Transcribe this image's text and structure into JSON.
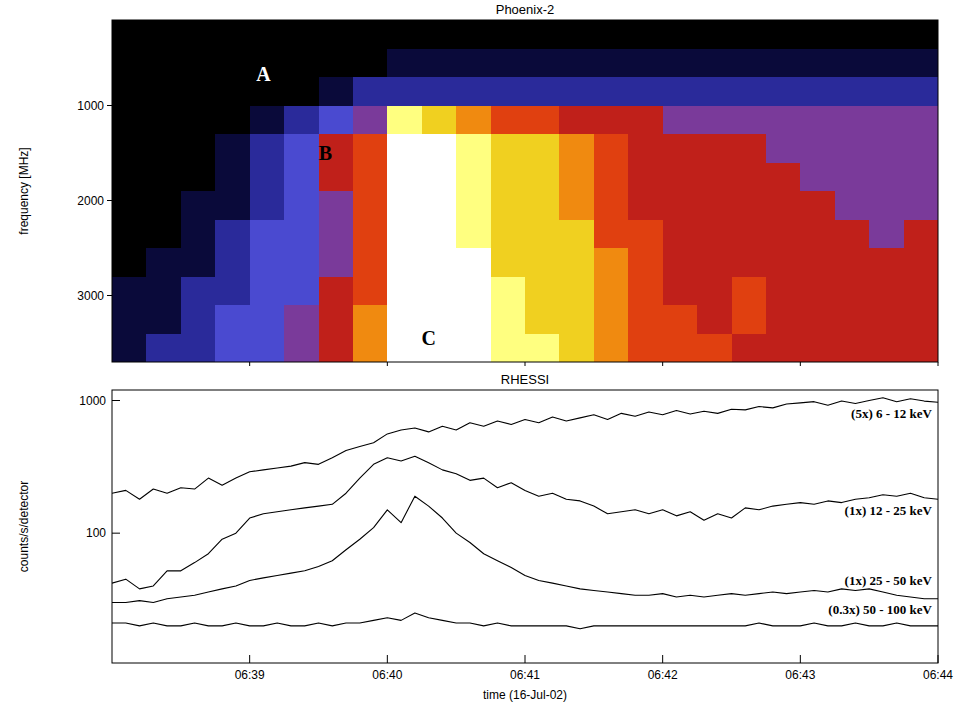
{
  "chart_data": [
    {
      "type": "heatmap",
      "title": "Phoenix-2",
      "y_label": "frequency [MHz]",
      "xlim": [
        38,
        44
      ],
      "ylim": [
        100,
        3700
      ],
      "xticks": [
        39,
        40,
        41,
        42,
        43,
        44
      ],
      "yticks": [
        1000,
        2000,
        3000
      ],
      "tick_labels": "y",
      "x_bins": [
        38,
        38.25,
        38.5,
        38.75,
        39,
        39.25,
        39.5,
        39.75,
        40,
        40.25,
        40.5,
        40.75,
        41,
        41.25,
        41.5,
        41.75,
        42,
        42.25,
        42.5,
        42.75,
        43,
        43.25,
        43.5,
        43.75,
        44
      ],
      "y_bins": [
        100,
        400,
        700,
        1000,
        1300,
        1600,
        1900,
        2200,
        2500,
        2800,
        3100,
        3400,
        3700
      ],
      "zlim": [
        0,
        10
      ],
      "cells": [
        [
          0,
          0,
          0,
          0,
          0,
          0,
          0,
          0,
          0,
          0,
          0,
          0,
          0,
          0,
          0,
          0,
          0,
          0,
          0,
          0,
          0,
          0,
          0,
          0
        ],
        [
          0,
          0,
          0,
          0,
          0,
          0,
          0,
          0,
          1,
          1,
          1,
          1,
          1,
          1,
          1,
          1,
          1,
          1,
          1,
          1,
          1,
          1,
          1,
          1
        ],
        [
          0,
          0,
          0,
          0,
          0,
          0,
          1,
          2,
          2,
          2,
          2,
          2,
          2,
          2,
          2,
          2,
          2,
          2,
          2,
          2,
          2,
          2,
          2,
          2
        ],
        [
          0,
          0,
          0,
          0,
          1,
          2,
          3,
          4,
          9,
          8,
          7,
          6,
          6,
          5,
          5,
          5,
          4,
          4,
          4,
          4,
          4,
          4,
          4,
          4
        ],
        [
          0,
          0,
          0,
          1,
          2,
          3,
          5,
          6,
          10,
          10,
          9,
          8,
          8,
          7,
          6,
          5,
          5,
          5,
          5,
          4,
          4,
          4,
          4,
          4
        ],
        [
          0,
          0,
          0,
          1,
          2,
          3,
          5,
          6,
          10,
          10,
          9,
          8,
          8,
          7,
          6,
          5,
          5,
          5,
          5,
          5,
          4,
          4,
          4,
          4
        ],
        [
          0,
          0,
          1,
          1,
          2,
          3,
          4,
          6,
          10,
          10,
          9,
          8,
          8,
          7,
          6,
          5,
          5,
          5,
          5,
          5,
          5,
          4,
          4,
          4
        ],
        [
          0,
          0,
          1,
          2,
          3,
          3,
          4,
          6,
          10,
          10,
          9,
          8,
          8,
          8,
          6,
          6,
          5,
          5,
          5,
          5,
          5,
          5,
          4,
          5
        ],
        [
          0,
          1,
          1,
          2,
          3,
          3,
          4,
          6,
          10,
          10,
          10,
          8,
          8,
          8,
          7,
          6,
          5,
          5,
          5,
          5,
          5,
          5,
          5,
          5
        ],
        [
          1,
          1,
          2,
          2,
          3,
          3,
          5,
          6,
          10,
          10,
          10,
          9,
          8,
          8,
          7,
          6,
          5,
          5,
          6,
          5,
          5,
          5,
          5,
          5
        ],
        [
          1,
          1,
          2,
          3,
          3,
          4,
          5,
          7,
          10,
          10,
          10,
          9,
          8,
          8,
          7,
          6,
          6,
          5,
          6,
          5,
          5,
          5,
          5,
          5
        ],
        [
          1,
          2,
          2,
          3,
          3,
          4,
          5,
          7,
          10,
          10,
          10,
          9,
          9,
          8,
          7,
          6,
          6,
          6,
          5,
          5,
          5,
          5,
          5,
          5
        ]
      ],
      "annotations": [
        {
          "text": "A",
          "x": 39.1,
          "y": 670
        },
        {
          "text": "B",
          "x": 39.55,
          "y": 1500
        },
        {
          "text": "C",
          "x": 40.3,
          "y": 3450
        }
      ]
    },
    {
      "type": "line",
      "title": "RHESSI",
      "x_label": "time (16-Jul-02)",
      "y_label": "counts/s/detector",
      "log": "y",
      "xlim": [
        38,
        44
      ],
      "ylim": [
        10.5,
        1200
      ],
      "xticks": [
        {
          "value": 39,
          "label": "06:39"
        },
        {
          "value": 40,
          "label": "06:40"
        },
        {
          "value": 41,
          "label": "06:41"
        },
        {
          "value": 42,
          "label": "06:42"
        },
        {
          "value": 43,
          "label": "06:43"
        },
        {
          "value": 44,
          "label": "06:44"
        }
      ],
      "yticks": [
        100,
        1000
      ],
      "x": [
        38,
        38.1,
        38.2,
        38.3,
        38.4,
        38.5,
        38.6,
        38.7,
        38.8,
        38.9,
        39,
        39.1,
        39.2,
        39.3,
        39.4,
        39.5,
        39.6,
        39.7,
        39.8,
        39.9,
        40,
        40.1,
        40.2,
        40.3,
        40.4,
        40.5,
        40.6,
        40.7,
        40.8,
        40.9,
        41,
        41.1,
        41.2,
        41.3,
        41.4,
        41.5,
        41.6,
        41.7,
        41.8,
        41.9,
        42,
        42.1,
        42.2,
        42.3,
        42.4,
        42.5,
        42.6,
        42.7,
        42.8,
        42.9,
        43,
        43.1,
        43.2,
        43.3,
        43.4,
        43.5,
        43.6,
        43.7,
        43.8,
        43.9,
        44
      ],
      "series": [
        {
          "name": "(5x) 6 - 12 keV",
          "color": "#000000",
          "values": [
            200,
            210,
            180,
            215,
            200,
            220,
            215,
            260,
            230,
            260,
            290,
            300,
            310,
            320,
            340,
            330,
            370,
            420,
            450,
            480,
            560,
            600,
            620,
            580,
            640,
            600,
            680,
            640,
            700,
            660,
            720,
            680,
            750,
            700,
            740,
            780,
            720,
            800,
            760,
            820,
            780,
            840,
            790,
            830,
            800,
            860,
            850,
            900,
            880,
            940,
            960,
            980,
            920,
            990,
            950,
            1000,
            1050,
            980,
            1030,
            990,
            970
          ]
        },
        {
          "name": "(1x) 12 - 25 keV",
          "color": "#000000",
          "values": [
            42,
            45,
            38,
            40,
            52,
            52,
            60,
            70,
            90,
            100,
            130,
            140,
            145,
            150,
            155,
            160,
            165,
            200,
            260,
            330,
            370,
            350,
            380,
            340,
            300,
            280,
            250,
            260,
            220,
            240,
            210,
            190,
            200,
            180,
            175,
            160,
            140,
            145,
            150,
            140,
            150,
            135,
            145,
            125,
            140,
            130,
            155,
            150,
            160,
            165,
            170,
            165,
            175,
            170,
            180,
            185,
            195,
            190,
            200,
            185,
            180
          ]
        },
        {
          "name": "(1x) 25 - 50 keV",
          "color": "#000000",
          "values": [
            30,
            30,
            31,
            30,
            32,
            33,
            34,
            36,
            38,
            40,
            44,
            46,
            48,
            50,
            52,
            56,
            62,
            75,
            90,
            110,
            150,
            120,
            190,
            160,
            130,
            100,
            85,
            70,
            62,
            55,
            48,
            44,
            42,
            40,
            38,
            37,
            36,
            35,
            34,
            34,
            35,
            33,
            34,
            33,
            34,
            35,
            34,
            35,
            36,
            35,
            36,
            37,
            36,
            38,
            37,
            38,
            36,
            34,
            33,
            32,
            32
          ]
        },
        {
          "name": "(0.3x) 50 - 100 keV",
          "color": "#000000",
          "values": [
            21,
            21,
            20,
            21,
            20,
            20,
            21,
            20,
            20,
            21,
            20,
            20,
            21,
            20,
            20,
            21,
            20,
            21,
            21,
            22,
            23,
            22,
            25,
            23,
            22,
            21,
            21,
            20,
            21,
            20,
            20,
            20,
            20,
            20,
            19,
            20,
            20,
            20,
            20,
            20,
            20,
            20,
            20,
            20,
            20,
            20,
            20,
            21,
            20,
            20,
            20,
            21,
            20,
            20,
            21,
            20,
            20,
            21,
            20,
            20,
            20
          ]
        }
      ]
    }
  ]
}
